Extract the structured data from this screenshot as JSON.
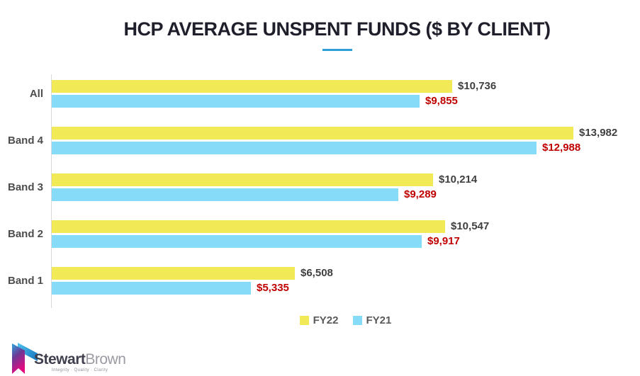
{
  "title": {
    "text": "HCP AVERAGE UNSPENT FUNDS ($ BY CLIENT)",
    "underline_color": "#2e9fd6"
  },
  "chart_data": {
    "type": "bar",
    "orientation": "horizontal",
    "title": "HCP AVERAGE UNSPENT FUNDS ($ BY CLIENT)",
    "categories": [
      "All",
      "Band 4",
      "Band 3",
      "Band 2",
      "Band 1"
    ],
    "series": [
      {
        "name": "FY22",
        "color": "#f1ea56",
        "label_color": "#404040",
        "values": [
          10736,
          13982,
          10214,
          10547,
          6508
        ],
        "labels": [
          "$10,736",
          "$13,982",
          "$10,214",
          "$10,547",
          "$6,508"
        ]
      },
      {
        "name": "FY21",
        "color": "#85dbf8",
        "label_color": "#c00000",
        "values": [
          9855,
          12988,
          9289,
          9917,
          5335
        ],
        "labels": [
          "$9,855",
          "$12,988",
          "$9,289",
          "$9,917",
          "$5,335"
        ]
      }
    ],
    "xlim": [
      0,
      14000
    ],
    "grid": false,
    "value_labels": true,
    "legend_position": "bottom-center",
    "axis_line_color": "#d9d9d9"
  },
  "legend": {
    "items": [
      {
        "label": "FY22",
        "color": "#f1ea56"
      },
      {
        "label": "FY21",
        "color": "#85dbf8"
      }
    ]
  },
  "logo": {
    "name_primary": "Stewart",
    "name_secondary": "Brown",
    "tagline": "Integrity · Quality · Clarity",
    "mark_colors": [
      "#4fc3f0",
      "#1e7fc4",
      "#2ba9e0",
      "#6a3a96",
      "#e5097f"
    ]
  }
}
